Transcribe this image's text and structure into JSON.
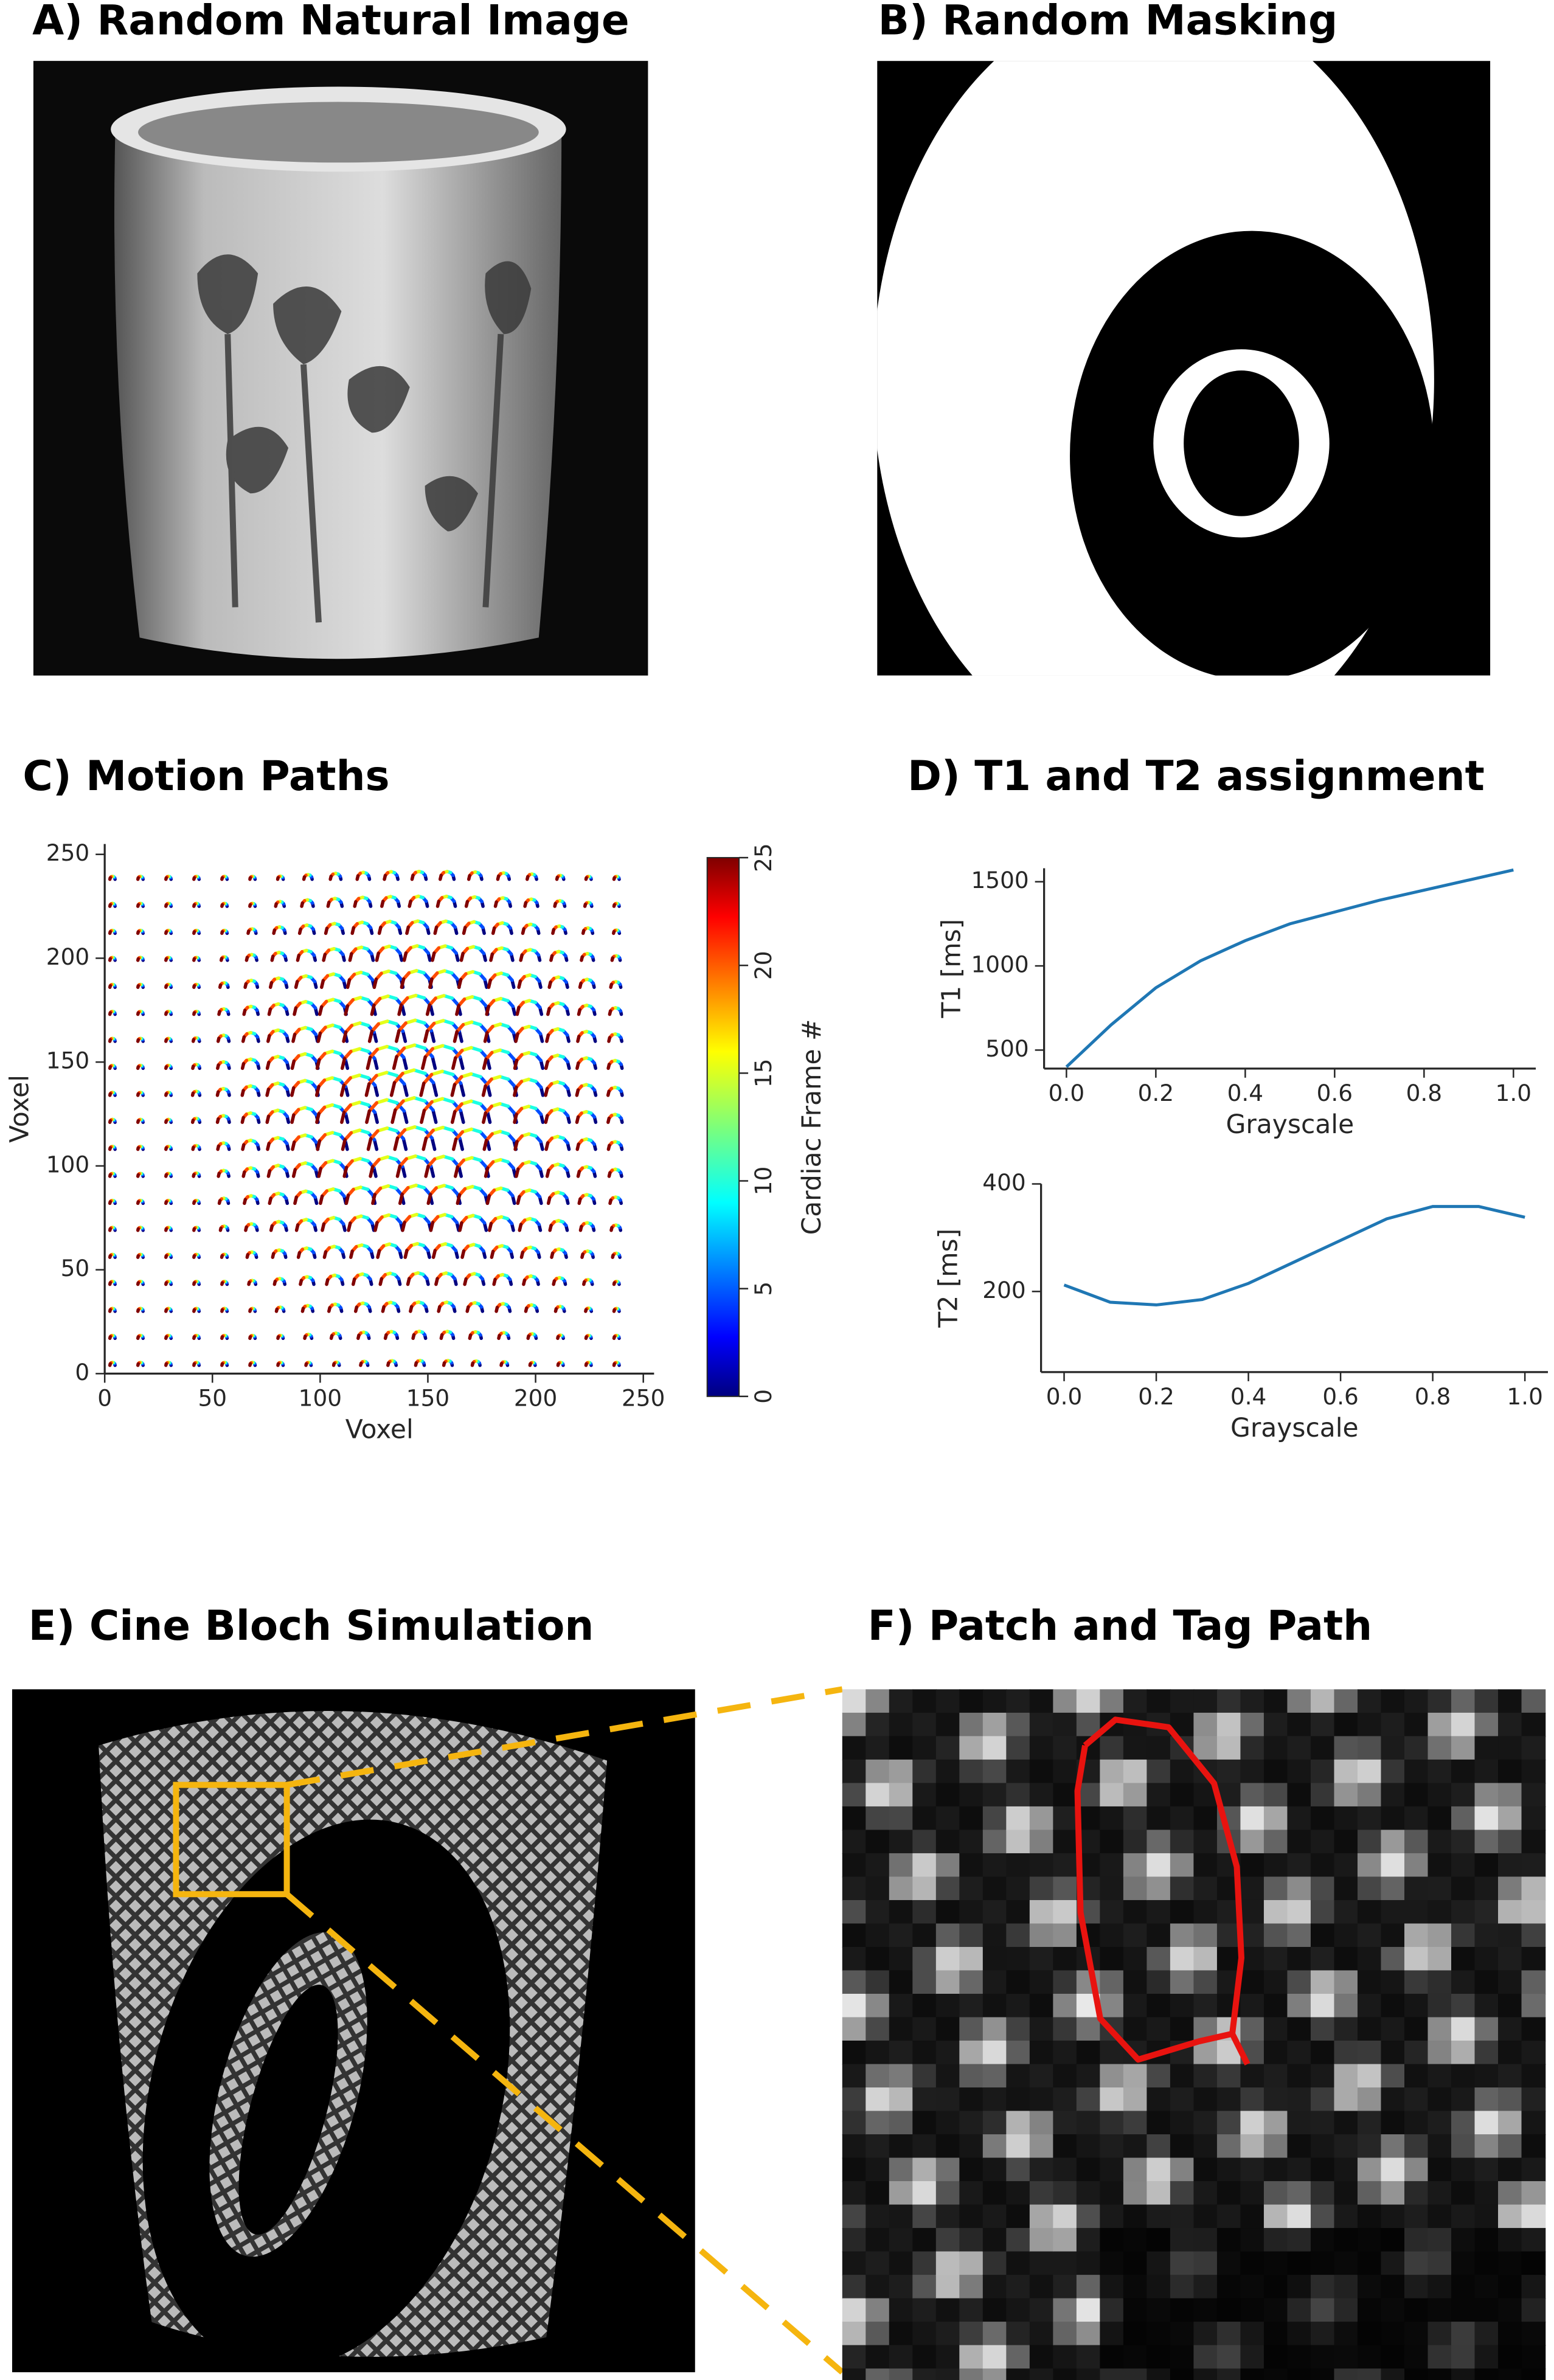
{
  "panels": {
    "a": {
      "title": "A) Random Natural Image"
    },
    "b": {
      "title": "B) Random Masking"
    },
    "e": {
      "title": "E) Cine Bloch Simulation"
    },
    "f": {
      "title": "F) Patch and Tag Path"
    }
  },
  "chart_data": [
    {
      "type": "motion-paths",
      "title": "C) Motion Paths",
      "xlabel": "Voxel",
      "ylabel": "Voxel",
      "xlim": [
        0,
        255
      ],
      "ylim": [
        0,
        255
      ],
      "xticks": [
        0,
        50,
        100,
        150,
        200,
        250
      ],
      "yticks": [
        0,
        50,
        100,
        150,
        200,
        250
      ],
      "colorbar": {
        "label": "Cardiac Frame #",
        "lim": [
          0,
          25
        ],
        "ticks": [
          0,
          5,
          10,
          15,
          20,
          25
        ],
        "colormap": "jet"
      }
    },
    {
      "type": "line",
      "title": "D) T1 and T2 assignment",
      "xlabel": "Grayscale",
      "ylabel": "T1 [ms]",
      "x": [
        0,
        0.1,
        0.2,
        0.3,
        0.4,
        0.5,
        0.6,
        0.7,
        0.8,
        0.9,
        1.0
      ],
      "values": [
        400,
        650,
        870,
        1030,
        1150,
        1250,
        1320,
        1390,
        1450,
        1510,
        1570
      ],
      "color": "#1f77b4",
      "xlim": [
        -0.05,
        1.05
      ],
      "ylim": [
        390,
        1580
      ],
      "xticks": [
        {
          "value": 0,
          "label": "0.0"
        },
        {
          "value": 0.2,
          "label": "0.2"
        },
        {
          "value": 0.4,
          "label": "0.4"
        },
        {
          "value": 0.6,
          "label": "0.6"
        },
        {
          "value": 0.8,
          "label": "0.8"
        },
        {
          "value": 1,
          "label": "1.0"
        }
      ],
      "yticks": [
        500,
        1000,
        1500
      ]
    },
    {
      "type": "line",
      "xlabel": "Grayscale",
      "ylabel": "T2 [ms]",
      "x": [
        0,
        0.1,
        0.2,
        0.3,
        0.4,
        0.5,
        0.6,
        0.7,
        0.8,
        0.9,
        1.0
      ],
      "values": [
        212,
        180,
        175,
        185,
        215,
        255,
        295,
        335,
        358,
        358,
        338
      ],
      "color": "#1f77b4",
      "xlim": [
        -0.05,
        1.05
      ],
      "ylim": [
        50,
        400
      ],
      "xticks": [
        {
          "value": 0,
          "label": "0.0"
        },
        {
          "value": 0.2,
          "label": "0.2"
        },
        {
          "value": 0.4,
          "label": "0.4"
        },
        {
          "value": 0.6,
          "label": "0.6"
        },
        {
          "value": 0.8,
          "label": "0.8"
        },
        {
          "value": 1,
          "label": "1.0"
        }
      ],
      "yticks": [
        200,
        400
      ]
    }
  ]
}
